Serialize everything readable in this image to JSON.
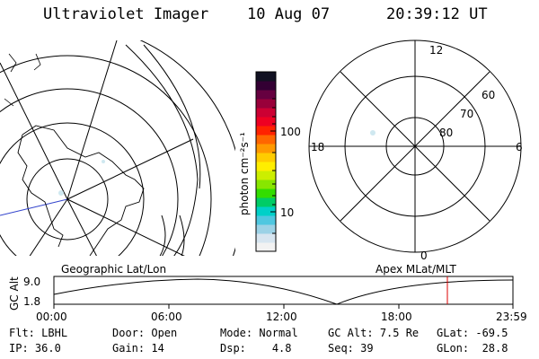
{
  "header": {
    "instrument": "Ultraviolet Imager",
    "date": "10 Aug 07",
    "time": "20:39:12 UT"
  },
  "geo_map": {
    "label": "Geographic Lat/Lon"
  },
  "colorbar": {
    "unit_label": "photon cm⁻²s⁻¹",
    "ticks": [
      {
        "label": "100",
        "value": 100
      },
      {
        "label": "10",
        "value": 10
      }
    ],
    "colors": [
      "#f2f2f2",
      "#d7e5f0",
      "#9cd2e6",
      "#4fc7e0",
      "#00d0c8",
      "#00cc66",
      "#33dd00",
      "#88e600",
      "#ccee00",
      "#ffee00",
      "#ffcc00",
      "#ff9900",
      "#ff6600",
      "#ff2200",
      "#ee0022",
      "#cc0033",
      "#99003a",
      "#660040",
      "#330033",
      "#111122"
    ]
  },
  "polar_plot": {
    "label": "Apex MLat/MLT",
    "mlt_labels": {
      "top": "12",
      "left": "18",
      "right": "6",
      "bottom": "0"
    },
    "lat_labels": [
      "60",
      "70",
      "80"
    ]
  },
  "altitude_plot": {
    "ylabel": "GC Alt",
    "yticks": [
      "9.0",
      "1.8"
    ],
    "xticks": [
      "00:00",
      "06:00",
      "12:00",
      "18:00",
      "23:59"
    ],
    "current_time_marker": "20:39"
  },
  "status": {
    "row1": [
      {
        "key": "Flt:",
        "value": "LBHL"
      },
      {
        "key": "Door:",
        "value": "Open"
      },
      {
        "key": "Mode:",
        "value": "Normal"
      },
      {
        "key": "GC Alt:",
        "value": "7.5 Re"
      },
      {
        "key": "GLat:",
        "value": "-69.5"
      }
    ],
    "row2": [
      {
        "key": "IP:",
        "value": "36.0"
      },
      {
        "key": "Gain:",
        "value": "14"
      },
      {
        "key": "Dsp:",
        "value": "4.8"
      },
      {
        "key": "Seq:",
        "value": "39"
      },
      {
        "key": "GLon:",
        "value": "28.8"
      }
    ]
  },
  "colors": {
    "line": "#000000",
    "marker": "#dd0000",
    "coast": "#000000",
    "meridian_blue": "#3344cc"
  }
}
